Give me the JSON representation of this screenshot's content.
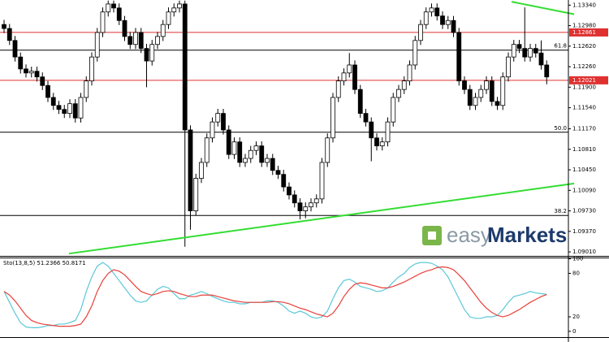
{
  "chart_data": [
    {
      "type": "candlestick",
      "open": [
        1.13,
        1.1293,
        1.1272,
        1.1243,
        1.1222,
        1.1215,
        1.1218,
        1.1208,
        1.1193,
        1.1172,
        1.1158,
        1.1151,
        1.1144,
        1.1161,
        1.1136,
        1.1172,
        1.1201,
        1.1243,
        1.1286,
        1.1322,
        1.1336,
        1.1329,
        1.1307,
        1.1279,
        1.1265,
        1.1286,
        1.1258,
        1.1236,
        1.1265,
        1.1279,
        1.13,
        1.1322,
        1.1329,
        1.1336,
        1.1115,
        1.0973,
        1.103,
        1.1058,
        1.1101,
        1.1129,
        1.1144,
        1.1115,
        1.1072,
        1.1094,
        1.1058,
        1.1065,
        1.1079,
        1.1087,
        1.1058,
        1.1065,
        1.1044,
        1.1037,
        1.1015,
        1.1001,
        1.0987,
        1.0973,
        1.098,
        1.0987,
        1.0994,
        1.1058,
        1.1101,
        1.1172,
        1.1201,
        1.1215,
        1.1229,
        1.1186,
        1.1144,
        1.1129,
        1.1101,
        1.1087,
        1.1094,
        1.1129,
        1.1172,
        1.1186,
        1.1201,
        1.1229,
        1.1272,
        1.13,
        1.1322,
        1.1329,
        1.1315,
        1.13,
        1.1307,
        1.1286,
        1.1201,
        1.1186,
        1.1158,
        1.1172,
        1.1186,
        1.1201,
        1.1165,
        1.1158,
        1.1208,
        1.1243,
        1.1265,
        1.1258,
        1.1243,
        1.1258,
        1.125,
        1.1229
      ],
      "high": [
        1.1308,
        1.1301,
        1.128,
        1.1251,
        1.123,
        1.1226,
        1.1226,
        1.1216,
        1.1201,
        1.118,
        1.1166,
        1.1159,
        1.1169,
        1.1169,
        1.118,
        1.1209,
        1.1251,
        1.1294,
        1.133,
        1.1342,
        1.1342,
        1.1337,
        1.1315,
        1.1287,
        1.1294,
        1.1294,
        1.1266,
        1.1273,
        1.1287,
        1.1308,
        1.133,
        1.1337,
        1.1342,
        1.1342,
        1.1123,
        1.1038,
        1.1066,
        1.1109,
        1.1137,
        1.1152,
        1.1152,
        1.1123,
        1.1102,
        1.1102,
        1.1073,
        1.1087,
        1.1095,
        1.1095,
        1.1073,
        1.1073,
        1.1052,
        1.1045,
        1.1023,
        1.1009,
        1.0995,
        1.0988,
        1.0995,
        1.1002,
        1.1066,
        1.1109,
        1.118,
        1.1209,
        1.1223,
        1.125,
        1.1237,
        1.1194,
        1.1152,
        1.1137,
        1.1109,
        1.1102,
        1.1137,
        1.118,
        1.1194,
        1.1209,
        1.1237,
        1.128,
        1.1308,
        1.133,
        1.1337,
        1.1337,
        1.1323,
        1.1315,
        1.1315,
        1.1294,
        1.1209,
        1.1194,
        1.118,
        1.1194,
        1.1209,
        1.1209,
        1.1173,
        1.1216,
        1.1251,
        1.1273,
        1.1273,
        1.133,
        1.1266,
        1.1266,
        1.1272,
        1.1237
      ],
      "low": [
        1.1285,
        1.1264,
        1.1235,
        1.1214,
        1.1207,
        1.1207,
        1.12,
        1.1185,
        1.1164,
        1.115,
        1.1143,
        1.1136,
        1.1136,
        1.1128,
        1.1128,
        1.1164,
        1.1193,
        1.1235,
        1.1278,
        1.1314,
        1.1321,
        1.1299,
        1.1271,
        1.1257,
        1.1257,
        1.125,
        1.119,
        1.1228,
        1.1257,
        1.1271,
        1.1292,
        1.1314,
        1.1321,
        1.091,
        1.094,
        1.0965,
        1.1022,
        1.105,
        1.1093,
        1.1121,
        1.1107,
        1.1064,
        1.1064,
        1.105,
        1.105,
        1.1057,
        1.1071,
        1.105,
        1.105,
        1.1036,
        1.1029,
        1.1007,
        1.0993,
        1.0979,
        1.0958,
        1.096,
        1.0972,
        1.0979,
        1.0986,
        1.105,
        1.1093,
        1.1164,
        1.1193,
        1.1207,
        1.1178,
        1.1136,
        1.1121,
        1.106,
        1.1079,
        1.1079,
        1.1086,
        1.1121,
        1.1164,
        1.1178,
        1.1193,
        1.1221,
        1.1264,
        1.1292,
        1.1314,
        1.1307,
        1.1292,
        1.1292,
        1.1278,
        1.1193,
        1.1178,
        1.115,
        1.115,
        1.1164,
        1.1178,
        1.1157,
        1.115,
        1.115,
        1.12,
        1.1235,
        1.125,
        1.1235,
        1.1235,
        1.1242,
        1.1221,
        1.1195
      ],
      "close": [
        1.1293,
        1.1272,
        1.1243,
        1.1222,
        1.1215,
        1.1218,
        1.1208,
        1.1193,
        1.1172,
        1.1158,
        1.1151,
        1.1144,
        1.1161,
        1.1136,
        1.1172,
        1.1201,
        1.1243,
        1.1286,
        1.1322,
        1.1336,
        1.1329,
        1.1307,
        1.1279,
        1.1265,
        1.1286,
        1.1258,
        1.1236,
        1.1265,
        1.1279,
        1.13,
        1.1322,
        1.1329,
        1.1336,
        1.1115,
        1.0973,
        1.103,
        1.1058,
        1.1101,
        1.1129,
        1.1144,
        1.1115,
        1.1072,
        1.1094,
        1.1058,
        1.1065,
        1.1079,
        1.1087,
        1.1058,
        1.1065,
        1.1044,
        1.1037,
        1.1015,
        1.1001,
        1.0987,
        1.0973,
        1.098,
        1.0987,
        1.0994,
        1.1058,
        1.1101,
        1.1172,
        1.1201,
        1.1215,
        1.1229,
        1.1186,
        1.1144,
        1.1129,
        1.1101,
        1.1087,
        1.1094,
        1.1129,
        1.1172,
        1.1186,
        1.1201,
        1.1229,
        1.1272,
        1.13,
        1.1322,
        1.1329,
        1.1315,
        1.13,
        1.1307,
        1.1286,
        1.1201,
        1.1186,
        1.1158,
        1.1172,
        1.1186,
        1.1201,
        1.1165,
        1.1158,
        1.1208,
        1.1243,
        1.1265,
        1.1258,
        1.1243,
        1.1258,
        1.125,
        1.1229,
        1.1208
      ],
      "up_color": "#ffffff",
      "down_color": "#000000",
      "ylim": [
        1.0894,
        1.1343
      ],
      "yticks": [
        {
          "value": 1.1334,
          "label": "1.13340"
        },
        {
          "value": 1.1298,
          "label": "1.12980"
        },
        {
          "value": 1.1262,
          "label": "1.12620"
        },
        {
          "value": 1.1226,
          "label": "1.12260"
        },
        {
          "value": 1.119,
          "label": "1.11900"
        },
        {
          "value": 1.1154,
          "label": "1.11540"
        },
        {
          "value": 1.1117,
          "label": "1.11170"
        },
        {
          "value": 1.1081,
          "label": "1.10810"
        },
        {
          "value": 1.1045,
          "label": "1.10450"
        },
        {
          "value": 1.1009,
          "label": "1.10090"
        },
        {
          "value": 1.0973,
          "label": "1.09730"
        },
        {
          "value": 1.0937,
          "label": "1.09370"
        },
        {
          "value": 1.0901,
          "label": "1.09010"
        }
      ],
      "levels": [
        {
          "value": 1.12861,
          "label": "1.12861",
          "color": "#e03030",
          "style": "price"
        },
        {
          "value": 1.1255,
          "label": "61.8",
          "color": "#000000",
          "style": "fib"
        },
        {
          "value": 1.12021,
          "label": "1.12021",
          "color": "#e03030",
          "style": "price"
        },
        {
          "value": 1.1111,
          "label": "50.0",
          "color": "#000000",
          "style": "fib"
        },
        {
          "value": 1.0965,
          "label": "38.2",
          "color": "#000000",
          "style": "fib"
        }
      ],
      "trendlines": [
        {
          "color": "#33dd33",
          "start": [
            92.6,
            1.134
          ],
          "end": [
            104,
            1.1318
          ]
        },
        {
          "color": "#33dd33",
          "start": [
            11.85,
            1.0898
          ],
          "end": [
            104,
            1.1021
          ]
        }
      ],
      "watermark": [
        "easy",
        "Markets"
      ]
    },
    {
      "type": "line",
      "title": "Sto(13,8,5) 51.2366 50.8171",
      "series": [
        {
          "name": "Main",
          "color": "#5bc8d8",
          "values": [
            55,
            40,
            25,
            12,
            6,
            5,
            5,
            6,
            8,
            8,
            10,
            10,
            12,
            15,
            30,
            55,
            75,
            90,
            95,
            90,
            80,
            70,
            60,
            50,
            42,
            40,
            42,
            50,
            58,
            62,
            60,
            52,
            45,
            45,
            50,
            52,
            55,
            52,
            48,
            45,
            42,
            40,
            40,
            38,
            38,
            40,
            40,
            40,
            42,
            42,
            40,
            35,
            28,
            25,
            28,
            25,
            20,
            18,
            20,
            28,
            45,
            60,
            70,
            72,
            68,
            62,
            60,
            58,
            55,
            56,
            60,
            68,
            75,
            80,
            88,
            93,
            95,
            95,
            94,
            90,
            85,
            75,
            60,
            45,
            30,
            20,
            18,
            18,
            20,
            20,
            22,
            30,
            40,
            48,
            50,
            52,
            55,
            53,
            52,
            51.2366
          ]
        },
        {
          "name": "Signal",
          "color": "#e8403a",
          "values": [
            55,
            50,
            42,
            32,
            22,
            15,
            12,
            10,
            9,
            8,
            7,
            7,
            7,
            8,
            10,
            20,
            35,
            55,
            70,
            80,
            85,
            83,
            78,
            70,
            62,
            55,
            52,
            50,
            52,
            55,
            56,
            55,
            52,
            50,
            48,
            48,
            50,
            50,
            50,
            48,
            46,
            44,
            42,
            41,
            40,
            40,
            40,
            40,
            40,
            41,
            41,
            40,
            38,
            35,
            32,
            30,
            27,
            24,
            22,
            20,
            25,
            35,
            48,
            58,
            65,
            67,
            66,
            64,
            62,
            60,
            60,
            62,
            65,
            68,
            72,
            76,
            80,
            83,
            85,
            88,
            89,
            88,
            85,
            78,
            70,
            60,
            50,
            40,
            32,
            26,
            22,
            20,
            22,
            26,
            30,
            35,
            40,
            44,
            48,
            50.8171
          ]
        }
      ],
      "ylim": [
        -8,
        103
      ],
      "yticks": [
        0,
        20,
        80,
        100
      ]
    }
  ]
}
